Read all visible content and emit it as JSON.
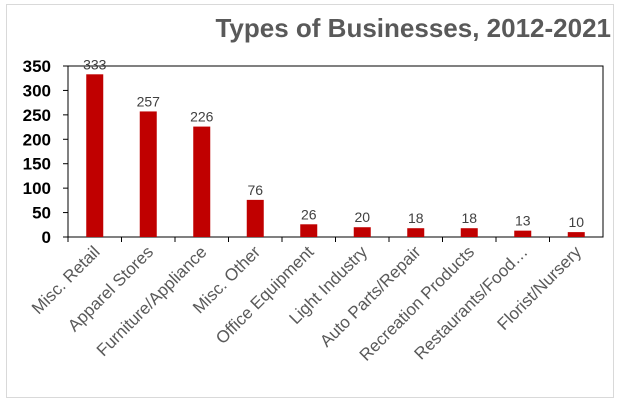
{
  "chart_data": {
    "type": "bar",
    "title": "Types of Businesses, 2012-2021",
    "xlabel": "",
    "ylabel": "",
    "categories": [
      "Misc. Retail",
      "Apparel Stores",
      "Furniture/Appliance",
      "Misc. Other",
      "Office Equipment",
      "Light Industry",
      "Auto Parts/Repair",
      "Recreation Products",
      "Restaurants/Food…",
      "Florist/Nursery"
    ],
    "values": [
      333,
      257,
      226,
      76,
      26,
      20,
      18,
      18,
      13,
      10
    ],
    "data_labels": [
      "333",
      "257",
      "226",
      "76",
      "26",
      "20",
      "18",
      "18",
      "13",
      "10"
    ],
    "ylim": [
      0,
      350
    ],
    "yticks": [
      0,
      50,
      100,
      150,
      200,
      250,
      300,
      350
    ],
    "bar_color": "#c00000",
    "title_color": "#595959",
    "grid": false,
    "legend": "none"
  }
}
